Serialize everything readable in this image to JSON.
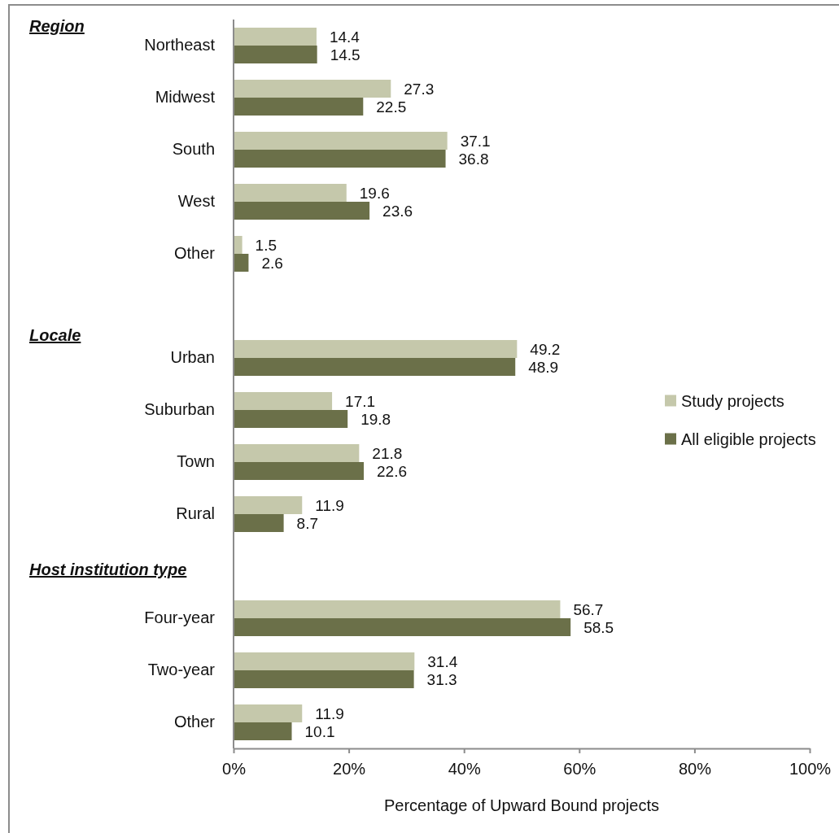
{
  "chart_data": {
    "type": "bar",
    "orientation": "horizontal",
    "categories": [
      "Northeast",
      "Midwest",
      "South",
      "West",
      "Other",
      null,
      "Urban",
      "Suburban",
      "Town",
      "Rural",
      null,
      "Four-year",
      "Two-year",
      "Other"
    ],
    "series": [
      {
        "name": "Study projects",
        "color": "#c5c8ab",
        "values": [
          14.4,
          27.3,
          37.1,
          19.6,
          1.5,
          null,
          49.2,
          17.1,
          21.8,
          11.9,
          null,
          56.7,
          31.4,
          11.9
        ]
      },
      {
        "name": "All eligible projects",
        "color": "#6b7049",
        "values": [
          14.5,
          22.5,
          36.8,
          23.6,
          2.6,
          null,
          48.9,
          19.8,
          22.6,
          8.7,
          null,
          58.5,
          31.3,
          10.1
        ]
      }
    ],
    "xlabel": "Percentage of Upward Bound projects",
    "xlim": [
      0,
      100
    ],
    "xticks": [
      {
        "value": 0,
        "label": "0%"
      },
      {
        "value": 20,
        "label": "20%"
      },
      {
        "value": 40,
        "label": "40%"
      },
      {
        "value": 60,
        "label": "60%"
      },
      {
        "value": 80,
        "label": "80%"
      },
      {
        "value": 100,
        "label": "100%"
      }
    ],
    "data_labels": true,
    "legend": "right",
    "annotations": [
      "Region",
      "Locale",
      "Host institution type"
    ]
  }
}
